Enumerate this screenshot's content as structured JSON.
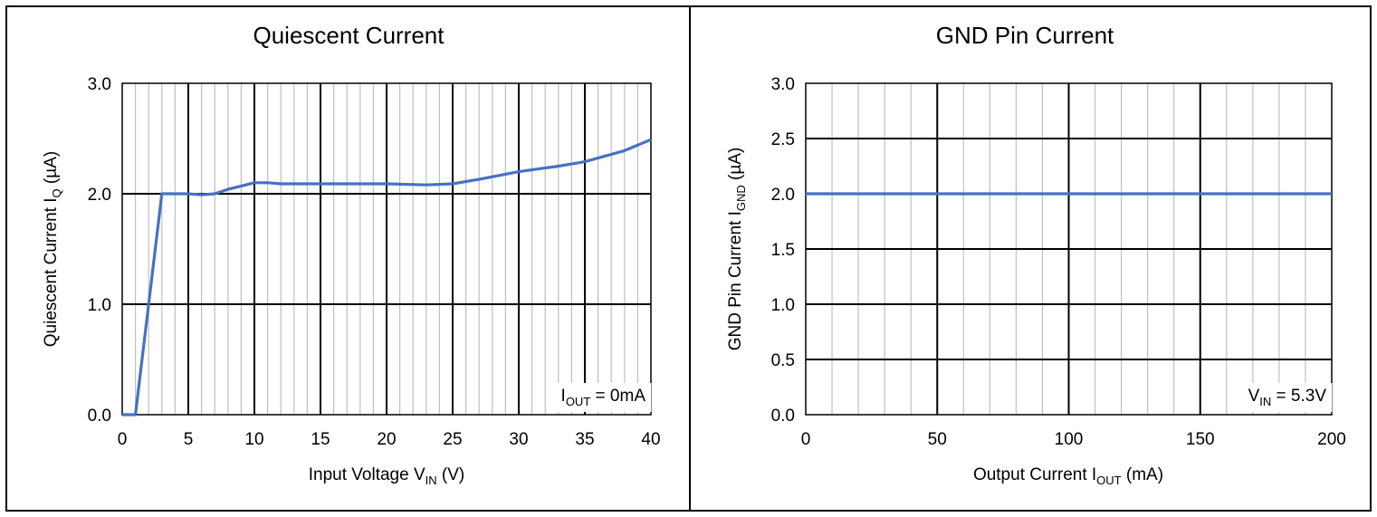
{
  "chart_data": [
    {
      "type": "line",
      "title": "Quiescent Current",
      "xlabel": {
        "main": "Input Voltage V",
        "sub": "IN",
        "tail": " (V)"
      },
      "ylabel": {
        "main": "Quiescent Current I",
        "sub": "Q",
        "tail": " (µA)"
      },
      "xlim": [
        0,
        40
      ],
      "ylim": [
        0,
        3
      ],
      "x_ticks": [
        "0",
        "5",
        "10",
        "15",
        "20",
        "25",
        "30",
        "35",
        "40"
      ],
      "y_ticks": [
        "0.0",
        "1.0",
        "2.0",
        "3.0"
      ],
      "grid": true,
      "annotation": {
        "main": "I",
        "sub": "OUT",
        "tail": " = 0mA"
      },
      "color": "#4472C4",
      "series": [
        {
          "x": [
            0,
            1,
            3,
            5,
            6,
            7,
            8,
            10,
            11,
            12,
            15,
            18,
            20,
            23,
            25,
            27,
            30,
            33,
            35,
            38,
            40
          ],
          "y": [
            0,
            0,
            2.0,
            2.0,
            1.99,
            2.0,
            2.04,
            2.1,
            2.1,
            2.09,
            2.09,
            2.09,
            2.09,
            2.08,
            2.09,
            2.13,
            2.2,
            2.25,
            2.29,
            2.39,
            2.49
          ]
        }
      ]
    },
    {
      "type": "line",
      "title": "GND Pin Current",
      "xlabel": {
        "main": "Output Current I",
        "sub": "OUT",
        "tail": " (mA)"
      },
      "ylabel": {
        "main": "GND Pin Current I",
        "sub": "GND",
        "tail": " (µA)"
      },
      "xlim": [
        0,
        200
      ],
      "ylim": [
        0,
        3
      ],
      "x_ticks": [
        "0",
        "50",
        "100",
        "150",
        "200"
      ],
      "y_ticks": [
        "0.0",
        "0.5",
        "1.0",
        "1.5",
        "2.0",
        "2.5",
        "3.0"
      ],
      "grid": true,
      "annotation": {
        "main": "V",
        "sub": "IN",
        "tail": " = 5.3V"
      },
      "color": "#4472C4",
      "series": [
        {
          "x": [
            0,
            200
          ],
          "y": [
            2.0,
            2.0
          ]
        }
      ]
    }
  ]
}
